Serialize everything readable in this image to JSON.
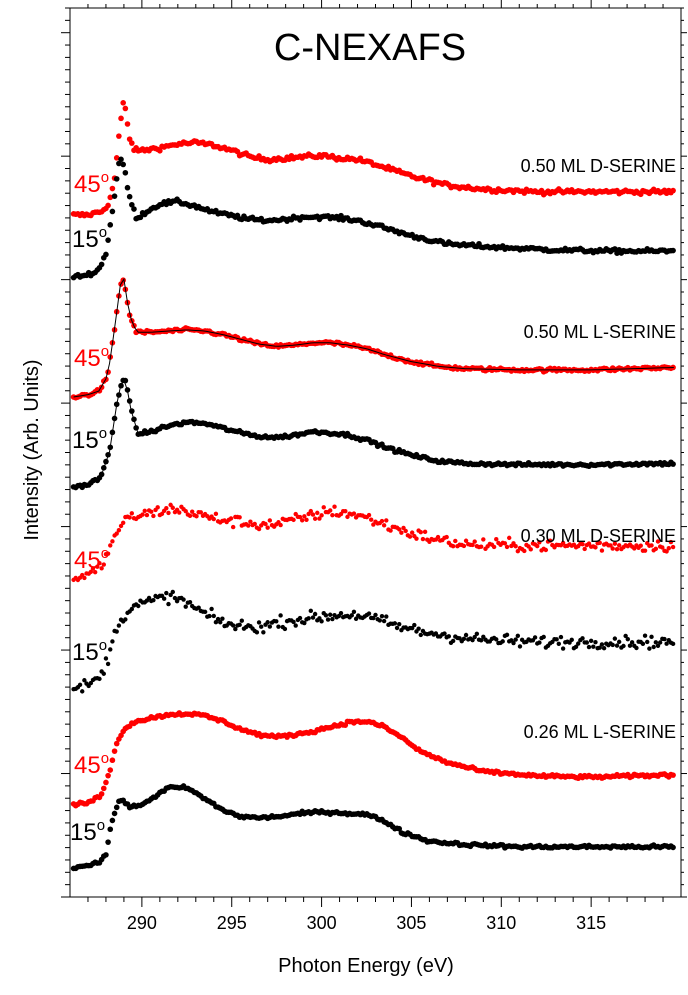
{
  "chart_data": {
    "type": "scatter",
    "title": "C-NEXAFS",
    "xlabel": "Photon Energy (eV)",
    "ylabel": "Intensity (Arb. Units)",
    "xlim": [
      286,
      320
    ],
    "xticks": [
      290,
      295,
      300,
      305,
      310,
      315
    ],
    "y_tick_labels_shown": false,
    "grid": false,
    "colors": {
      "grazing_45": "#ff0000",
      "normal_15": "#000000"
    },
    "angle_labels": {
      "deg45": "45",
      "deg15": "15",
      "degree_mark": "o"
    },
    "panels": [
      {
        "label": "0.50 ML D-SERINE",
        "series": [
          {
            "angle": "45",
            "color": "#ff0000",
            "offset": 0.0,
            "scale": 0.68,
            "noise": 0.015,
            "points": [
              [
                286.2,
                0.0
              ],
              [
                287.0,
                0.0
              ],
              [
                287.8,
                0.03
              ],
              [
                288.2,
                0.1
              ],
              [
                288.5,
                0.3
              ],
              [
                288.75,
                0.65
              ],
              [
                289.0,
                0.9
              ],
              [
                289.3,
                0.6
              ],
              [
                289.6,
                0.5
              ],
              [
                290.0,
                0.5
              ],
              [
                291.0,
                0.52
              ],
              [
                292.0,
                0.55
              ],
              [
                293.0,
                0.56
              ],
              [
                294.0,
                0.54
              ],
              [
                295.0,
                0.5
              ],
              [
                296.0,
                0.45
              ],
              [
                297.0,
                0.43
              ],
              [
                298.0,
                0.44
              ],
              [
                299.0,
                0.45
              ],
              [
                300.0,
                0.46
              ],
              [
                301.0,
                0.44
              ],
              [
                302.0,
                0.43
              ],
              [
                303.0,
                0.39
              ],
              [
                305.0,
                0.3
              ],
              [
                307.0,
                0.23
              ],
              [
                309.0,
                0.2
              ],
              [
                312.0,
                0.18
              ],
              [
                315.0,
                0.18
              ],
              [
                319.5,
                0.18
              ]
            ]
          },
          {
            "angle": "15",
            "color": "#000000",
            "offset": 0.0,
            "scale": 0.62,
            "noise": 0.015,
            "points": [
              [
                286.2,
                0.0
              ],
              [
                287.0,
                0.02
              ],
              [
                287.6,
                0.06
              ],
              [
                288.0,
                0.2
              ],
              [
                288.4,
                0.6
              ],
              [
                288.75,
                1.0
              ],
              [
                289.0,
                0.95
              ],
              [
                289.3,
                0.68
              ],
              [
                289.7,
                0.5
              ],
              [
                290.2,
                0.55
              ],
              [
                291.0,
                0.62
              ],
              [
                292.0,
                0.64
              ],
              [
                293.0,
                0.6
              ],
              [
                294.0,
                0.55
              ],
              [
                295.0,
                0.52
              ],
              [
                296.0,
                0.49
              ],
              [
                297.0,
                0.48
              ],
              [
                298.0,
                0.49
              ],
              [
                299.0,
                0.51
              ],
              [
                300.0,
                0.51
              ],
              [
                301.0,
                0.5
              ],
              [
                302.0,
                0.48
              ],
              [
                303.0,
                0.44
              ],
              [
                305.0,
                0.35
              ],
              [
                307.0,
                0.28
              ],
              [
                310.0,
                0.25
              ],
              [
                313.0,
                0.23
              ],
              [
                316.0,
                0.22
              ],
              [
                319.5,
                0.22
              ]
            ]
          }
        ]
      },
      {
        "label": "0.50 ML L-SERINE",
        "series": [
          {
            "angle": "45",
            "color": "#ff0000",
            "offset": 0.0,
            "scale": 0.62,
            "noise": 0.012,
            "points": [
              [
                286.2,
                0.0
              ],
              [
                287.0,
                0.02
              ],
              [
                287.6,
                0.05
              ],
              [
                288.1,
                0.18
              ],
              [
                288.5,
                0.6
              ],
              [
                288.8,
                0.95
              ],
              [
                289.0,
                1.0
              ],
              [
                289.3,
                0.7
              ],
              [
                289.7,
                0.55
              ],
              [
                290.5,
                0.55
              ],
              [
                291.5,
                0.56
              ],
              [
                292.5,
                0.57
              ],
              [
                293.5,
                0.56
              ],
              [
                294.5,
                0.53
              ],
              [
                295.5,
                0.49
              ],
              [
                296.5,
                0.45
              ],
              [
                297.5,
                0.43
              ],
              [
                298.5,
                0.44
              ],
              [
                299.5,
                0.46
              ],
              [
                300.5,
                0.46
              ],
              [
                301.5,
                0.44
              ],
              [
                302.5,
                0.41
              ],
              [
                303.5,
                0.36
              ],
              [
                305.0,
                0.3
              ],
              [
                306.5,
                0.26
              ],
              [
                308.0,
                0.24
              ],
              [
                311.0,
                0.23
              ],
              [
                315.0,
                0.23
              ],
              [
                319.5,
                0.25
              ]
            ]
          },
          {
            "angle": "15",
            "color": "#000000",
            "offset": 0.0,
            "scale": 0.62,
            "noise": 0.012,
            "points": [
              [
                286.2,
                0.0
              ],
              [
                287.0,
                0.02
              ],
              [
                287.7,
                0.08
              ],
              [
                288.2,
                0.3
              ],
              [
                288.6,
                0.7
              ],
              [
                288.9,
                0.92
              ],
              [
                289.1,
                0.9
              ],
              [
                289.4,
                0.65
              ],
              [
                289.8,
                0.45
              ],
              [
                290.5,
                0.47
              ],
              [
                291.5,
                0.52
              ],
              [
                292.5,
                0.55
              ],
              [
                293.5,
                0.54
              ],
              [
                294.5,
                0.5
              ],
              [
                295.5,
                0.46
              ],
              [
                296.5,
                0.43
              ],
              [
                297.5,
                0.42
              ],
              [
                298.5,
                0.44
              ],
              [
                299.5,
                0.47
              ],
              [
                300.5,
                0.46
              ],
              [
                301.5,
                0.44
              ],
              [
                302.5,
                0.4
              ],
              [
                303.5,
                0.34
              ],
              [
                305.0,
                0.27
              ],
              [
                306.5,
                0.22
              ],
              [
                308.0,
                0.2
              ],
              [
                311.0,
                0.19
              ],
              [
                315.0,
                0.19
              ],
              [
                319.5,
                0.2
              ]
            ]
          }
        ]
      },
      {
        "label": "0.30 ML D-SERINE",
        "series": [
          {
            "angle": "45",
            "color": "#ff0000",
            "offset": 0.0,
            "scale": 0.62,
            "noise": 0.045,
            "points": [
              [
                286.2,
                0.0
              ],
              [
                287.0,
                0.02
              ],
              [
                287.7,
                0.1
              ],
              [
                288.2,
                0.25
              ],
              [
                288.6,
                0.42
              ],
              [
                289.0,
                0.5
              ],
              [
                289.5,
                0.55
              ],
              [
                290.5,
                0.58
              ],
              [
                291.5,
                0.62
              ],
              [
                292.5,
                0.6
              ],
              [
                293.5,
                0.55
              ],
              [
                294.5,
                0.52
              ],
              [
                295.5,
                0.5
              ],
              [
                296.5,
                0.48
              ],
              [
                297.5,
                0.48
              ],
              [
                298.5,
                0.52
              ],
              [
                299.5,
                0.56
              ],
              [
                300.5,
                0.6
              ],
              [
                301.5,
                0.58
              ],
              [
                302.5,
                0.54
              ],
              [
                303.5,
                0.48
              ],
              [
                305.0,
                0.4
              ],
              [
                306.5,
                0.34
              ],
              [
                308.0,
                0.3
              ],
              [
                311.0,
                0.29
              ],
              [
                315.0,
                0.29
              ],
              [
                319.5,
                0.29
              ]
            ]
          },
          {
            "angle": "15",
            "color": "#000000",
            "offset": 0.0,
            "scale": 0.58,
            "noise": 0.05,
            "points": [
              [
                286.2,
                0.0
              ],
              [
                287.0,
                0.05
              ],
              [
                287.7,
                0.12
              ],
              [
                288.2,
                0.35
              ],
              [
                288.6,
                0.6
              ],
              [
                289.0,
                0.72
              ],
              [
                289.5,
                0.8
              ],
              [
                290.5,
                0.85
              ],
              [
                291.5,
                0.9
              ],
              [
                292.3,
                0.85
              ],
              [
                293.0,
                0.78
              ],
              [
                294.0,
                0.68
              ],
              [
                295.0,
                0.62
              ],
              [
                296.0,
                0.6
              ],
              [
                297.0,
                0.62
              ],
              [
                298.0,
                0.66
              ],
              [
                299.0,
                0.68
              ],
              [
                300.0,
                0.7
              ],
              [
                301.0,
                0.72
              ],
              [
                302.0,
                0.72
              ],
              [
                303.0,
                0.68
              ],
              [
                304.0,
                0.62
              ],
              [
                305.5,
                0.56
              ],
              [
                307.0,
                0.52
              ],
              [
                309.0,
                0.48
              ],
              [
                312.0,
                0.46
              ],
              [
                315.0,
                0.46
              ],
              [
                319.5,
                0.46
              ]
            ]
          }
        ]
      },
      {
        "label": "0.26 ML L-SERINE",
        "series": [
          {
            "angle": "45",
            "color": "#ff0000",
            "offset": 0.0,
            "scale": 0.62,
            "noise": 0.012,
            "points": [
              [
                286.2,
                0.0
              ],
              [
                287.0,
                0.02
              ],
              [
                287.7,
                0.08
              ],
              [
                288.2,
                0.3
              ],
              [
                288.6,
                0.55
              ],
              [
                289.0,
                0.68
              ],
              [
                289.5,
                0.74
              ],
              [
                290.5,
                0.78
              ],
              [
                291.5,
                0.81
              ],
              [
                292.5,
                0.82
              ],
              [
                293.5,
                0.8
              ],
              [
                294.5,
                0.75
              ],
              [
                295.5,
                0.68
              ],
              [
                296.5,
                0.63
              ],
              [
                297.5,
                0.61
              ],
              [
                298.5,
                0.63
              ],
              [
                299.5,
                0.66
              ],
              [
                300.5,
                0.7
              ],
              [
                301.5,
                0.74
              ],
              [
                302.5,
                0.75
              ],
              [
                303.5,
                0.7
              ],
              [
                304.5,
                0.6
              ],
              [
                305.5,
                0.48
              ],
              [
                307.0,
                0.38
              ],
              [
                309.0,
                0.3
              ],
              [
                312.0,
                0.26
              ],
              [
                315.0,
                0.25
              ],
              [
                319.5,
                0.27
              ]
            ]
          },
          {
            "angle": "15",
            "color": "#000000",
            "offset": 0.0,
            "scale": 0.62,
            "noise": 0.012,
            "points": [
              [
                286.2,
                0.0
              ],
              [
                287.0,
                0.03
              ],
              [
                287.6,
                0.05
              ],
              [
                288.0,
                0.12
              ],
              [
                288.3,
                0.4
              ],
              [
                288.6,
                0.55
              ],
              [
                288.9,
                0.62
              ],
              [
                289.3,
                0.55
              ],
              [
                289.8,
                0.55
              ],
              [
                290.5,
                0.62
              ],
              [
                291.5,
                0.72
              ],
              [
                292.5,
                0.72
              ],
              [
                293.5,
                0.62
              ],
              [
                294.5,
                0.52
              ],
              [
                295.5,
                0.46
              ],
              [
                296.5,
                0.45
              ],
              [
                297.5,
                0.46
              ],
              [
                298.5,
                0.48
              ],
              [
                299.5,
                0.5
              ],
              [
                300.5,
                0.5
              ],
              [
                301.5,
                0.49
              ],
              [
                302.5,
                0.48
              ],
              [
                303.5,
                0.42
              ],
              [
                304.5,
                0.32
              ],
              [
                306.0,
                0.24
              ],
              [
                308.0,
                0.21
              ],
              [
                311.0,
                0.19
              ],
              [
                315.0,
                0.19
              ],
              [
                319.5,
                0.19
              ]
            ]
          }
        ]
      }
    ]
  }
}
